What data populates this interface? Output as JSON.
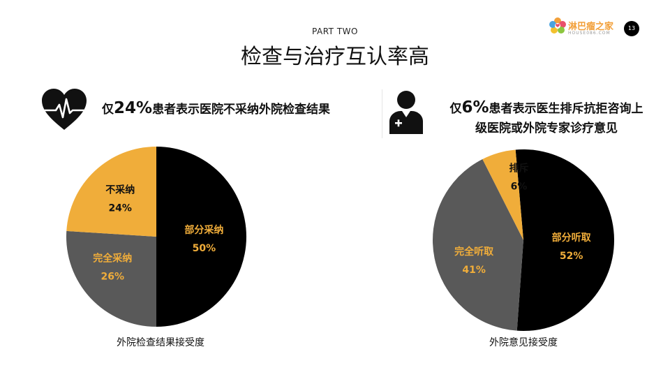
{
  "header": {
    "part": "PART TWO",
    "title": "检查与治疗互认率高",
    "logo_name": "淋巴瘤之家",
    "logo_sub": "HOUSE086.COM",
    "page_number": "13"
  },
  "left_panel": {
    "heading_prefix": "仅",
    "heading_number": "24%",
    "heading_text": "患者表示医院不采纳外院检查结果",
    "icon": "heart-pulse-icon",
    "caption": "外院检查结果接受度"
  },
  "right_panel": {
    "heading_prefix": "仅",
    "heading_number": "6%",
    "heading_text_1": "患者表示医生排斥抗拒咨询上",
    "heading_text_2": "级医院或外院专家诊疗意见",
    "icon": "doctor-icon",
    "caption": "外院意见接受度"
  },
  "colors": {
    "black": "#000000",
    "gray": "#595959",
    "gold": "#f0ad3a",
    "label_light": "#f0ad3a",
    "label_dark": "#111111"
  },
  "chart_data": [
    {
      "type": "pie",
      "slices": [
        {
          "label": "部分采纳",
          "value": 50,
          "value_text": "50%",
          "color": "#000000",
          "label_color": "#f0ad3a"
        },
        {
          "label": "完全采纳",
          "value": 26,
          "value_text": "26%",
          "color": "#595959",
          "label_color": "#f0ad3a"
        },
        {
          "label": "不采纳",
          "value": 24,
          "value_text": "24%",
          "color": "#f0ad3a",
          "label_color": "#111111"
        }
      ]
    },
    {
      "type": "pie",
      "slices": [
        {
          "label": "部分听取",
          "value": 52,
          "value_text": "52%",
          "color": "#000000",
          "label_color": "#f0ad3a"
        },
        {
          "label": "完全听取",
          "value": 41,
          "value_text": "41%",
          "color": "#595959",
          "label_color": "#f0ad3a"
        },
        {
          "label": "排斥",
          "value": 6,
          "value_text": "6%",
          "color": "#f0ad3a",
          "label_color": "#111111"
        }
      ]
    }
  ]
}
